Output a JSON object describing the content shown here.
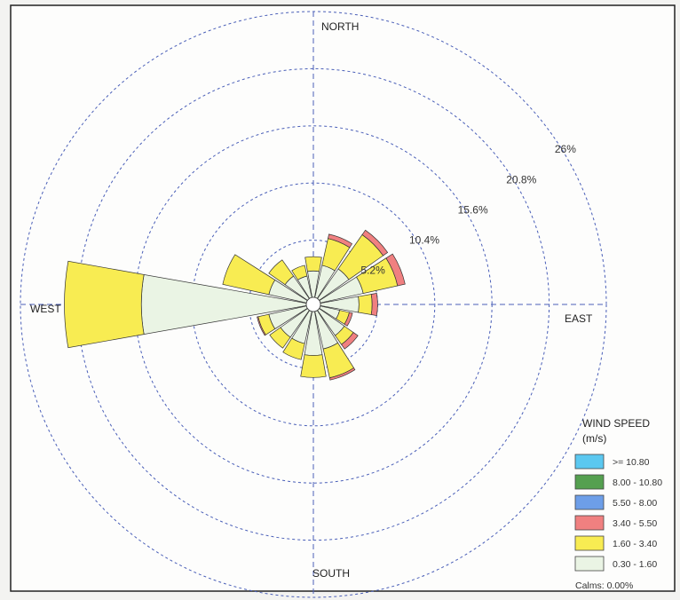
{
  "chart_data": {
    "type": "windrose",
    "directions": [
      "N",
      "NNE",
      "NE",
      "ENE",
      "E",
      "ESE",
      "SE",
      "SSE",
      "S",
      "SSW",
      "SW",
      "WSW",
      "W",
      "WNW",
      "NW",
      "NNW"
    ],
    "ring_labels": [
      "5.2%",
      "10.4%",
      "15.6%",
      "20.8%",
      "26%"
    ],
    "ring_values": [
      5.2,
      10.4,
      15.6,
      20.8,
      26.0
    ],
    "compass_labels": {
      "north": "NORTH",
      "east": "EAST",
      "south": "SOUTH",
      "west": "WEST"
    },
    "series": [
      {
        "name": "0.30 - 1.60",
        "color": "#eaf4e4",
        "values": [
          2.4,
          3.0,
          3.3,
          4.0,
          3.5,
          1.8,
          2.8,
          3.5,
          4.0,
          3.0,
          3.0,
          3.5,
          15.0,
          3.5,
          2.5,
          2.0
        ]
      },
      {
        "name": "1.60 - 3.40",
        "color": "#f8ec52",
        "values": [
          1.3,
          2.5,
          3.8,
          3.2,
          1.2,
          0.9,
          1.0,
          2.7,
          2.0,
          1.5,
          1.2,
          1.0,
          7.0,
          4.3,
          1.8,
          1.0
        ]
      },
      {
        "name": "3.40 - 5.50",
        "color": "#f08080",
        "values": [
          0,
          0.4,
          0.5,
          0.7,
          0.5,
          0.3,
          0.5,
          0.2,
          0,
          0,
          0,
          0.1,
          0,
          0,
          0,
          0
        ]
      },
      {
        "name": "5.50 - 8.00",
        "color": "#6d9ee8",
        "values": [
          0,
          0,
          0,
          0,
          0,
          0,
          0,
          0,
          0,
          0,
          0,
          0,
          0,
          0,
          0,
          0
        ]
      },
      {
        "name": "8.00 - 10.80",
        "color": "#55a050",
        "values": [
          0,
          0,
          0,
          0,
          0,
          0,
          0,
          0,
          0,
          0,
          0,
          0,
          0,
          0,
          0,
          0
        ]
      },
      {
        "name": ">= 10.80",
        "color": "#5bc8f0",
        "values": [
          0,
          0,
          0,
          0,
          0,
          0,
          0,
          0,
          0,
          0,
          0,
          0,
          0,
          0,
          0,
          0
        ]
      }
    ],
    "legend": {
      "title": "WIND SPEED",
      "units": "(m/s)",
      "placement": "bottom-right",
      "items": [
        {
          "label": ">= 10.80",
          "color": "#5bc8f0"
        },
        {
          "label": "8.00 - 10.80",
          "color": "#55a050"
        },
        {
          "label": "5.50 - 8.00",
          "color": "#6d9ee8"
        },
        {
          "label": "3.40 - 5.50",
          "color": "#f08080"
        },
        {
          "label": "1.60 - 3.40",
          "color": "#f8ec52"
        },
        {
          "label": "0.30 - 1.60",
          "color": "#eaf4e4"
        }
      ]
    },
    "calms": "Calms: 0.00%"
  }
}
